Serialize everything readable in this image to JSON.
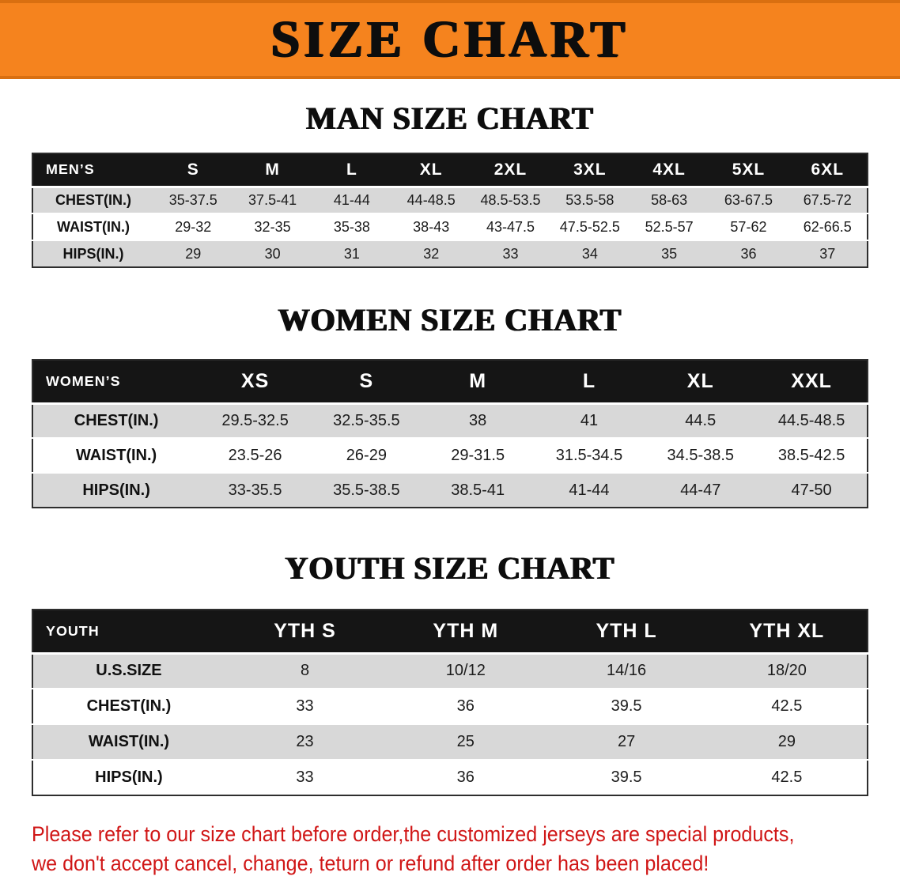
{
  "colors": {
    "banner_bg": "#f5831e",
    "header_bg": "#151515",
    "row_alt_bg": "#d8d8d8",
    "disclaimer_red": "#d01616"
  },
  "banner": {
    "title": "SIZE CHART"
  },
  "sections": {
    "men": {
      "heading": "MAN SIZE CHART",
      "table": {
        "header": [
          "MEN’S",
          "S",
          "M",
          "L",
          "XL",
          "2XL",
          "3XL",
          "4XL",
          "5XL",
          "6XL"
        ],
        "rows": [
          [
            "CHEST(IN.)",
            "35-37.5",
            "37.5-41",
            "41-44",
            "44-48.5",
            "48.5-53.5",
            "53.5-58",
            "58-63",
            "63-67.5",
            "67.5-72"
          ],
          [
            "WAIST(IN.)",
            "29-32",
            "32-35",
            "35-38",
            "38-43",
            "43-47.5",
            "47.5-52.5",
            "52.5-57",
            "57-62",
            "62-66.5"
          ],
          [
            "HIPS(IN.)",
            "29",
            "30",
            "31",
            "32",
            "33",
            "34",
            "35",
            "36",
            "37"
          ]
        ]
      }
    },
    "women": {
      "heading": "WOMEN SIZE CHART",
      "table": {
        "header": [
          "WOMEN’S",
          "XS",
          "S",
          "M",
          "L",
          "XL",
          "XXL"
        ],
        "rows": [
          [
            "CHEST(IN.)",
            "29.5-32.5",
            "32.5-35.5",
            "38",
            "41",
            "44.5",
            "44.5-48.5"
          ],
          [
            "WAIST(IN.)",
            "23.5-26",
            "26-29",
            "29-31.5",
            "31.5-34.5",
            "34.5-38.5",
            "38.5-42.5"
          ],
          [
            "HIPS(IN.)",
            "33-35.5",
            "35.5-38.5",
            "38.5-41",
            "41-44",
            "44-47",
            "47-50"
          ]
        ]
      }
    },
    "youth": {
      "heading": "YOUTH SIZE CHART",
      "table": {
        "header": [
          "YOUTH",
          "YTH S",
          "YTH M",
          "YTH L",
          "YTH XL"
        ],
        "rows": [
          [
            "U.S.SIZE",
            "8",
            "10/12",
            "14/16",
            "18/20"
          ],
          [
            "CHEST(IN.)",
            "33",
            "36",
            "39.5",
            "42.5"
          ],
          [
            "WAIST(IN.)",
            "23",
            "25",
            "27",
            "29"
          ],
          [
            "HIPS(IN.)",
            "33",
            "36",
            "39.5",
            "42.5"
          ]
        ]
      }
    }
  },
  "disclaimer": {
    "line1": "Please refer to our size chart before order,the customized jerseys are special products,",
    "line2": "we don't accept cancel, change, teturn or refund after order has been placed!"
  }
}
